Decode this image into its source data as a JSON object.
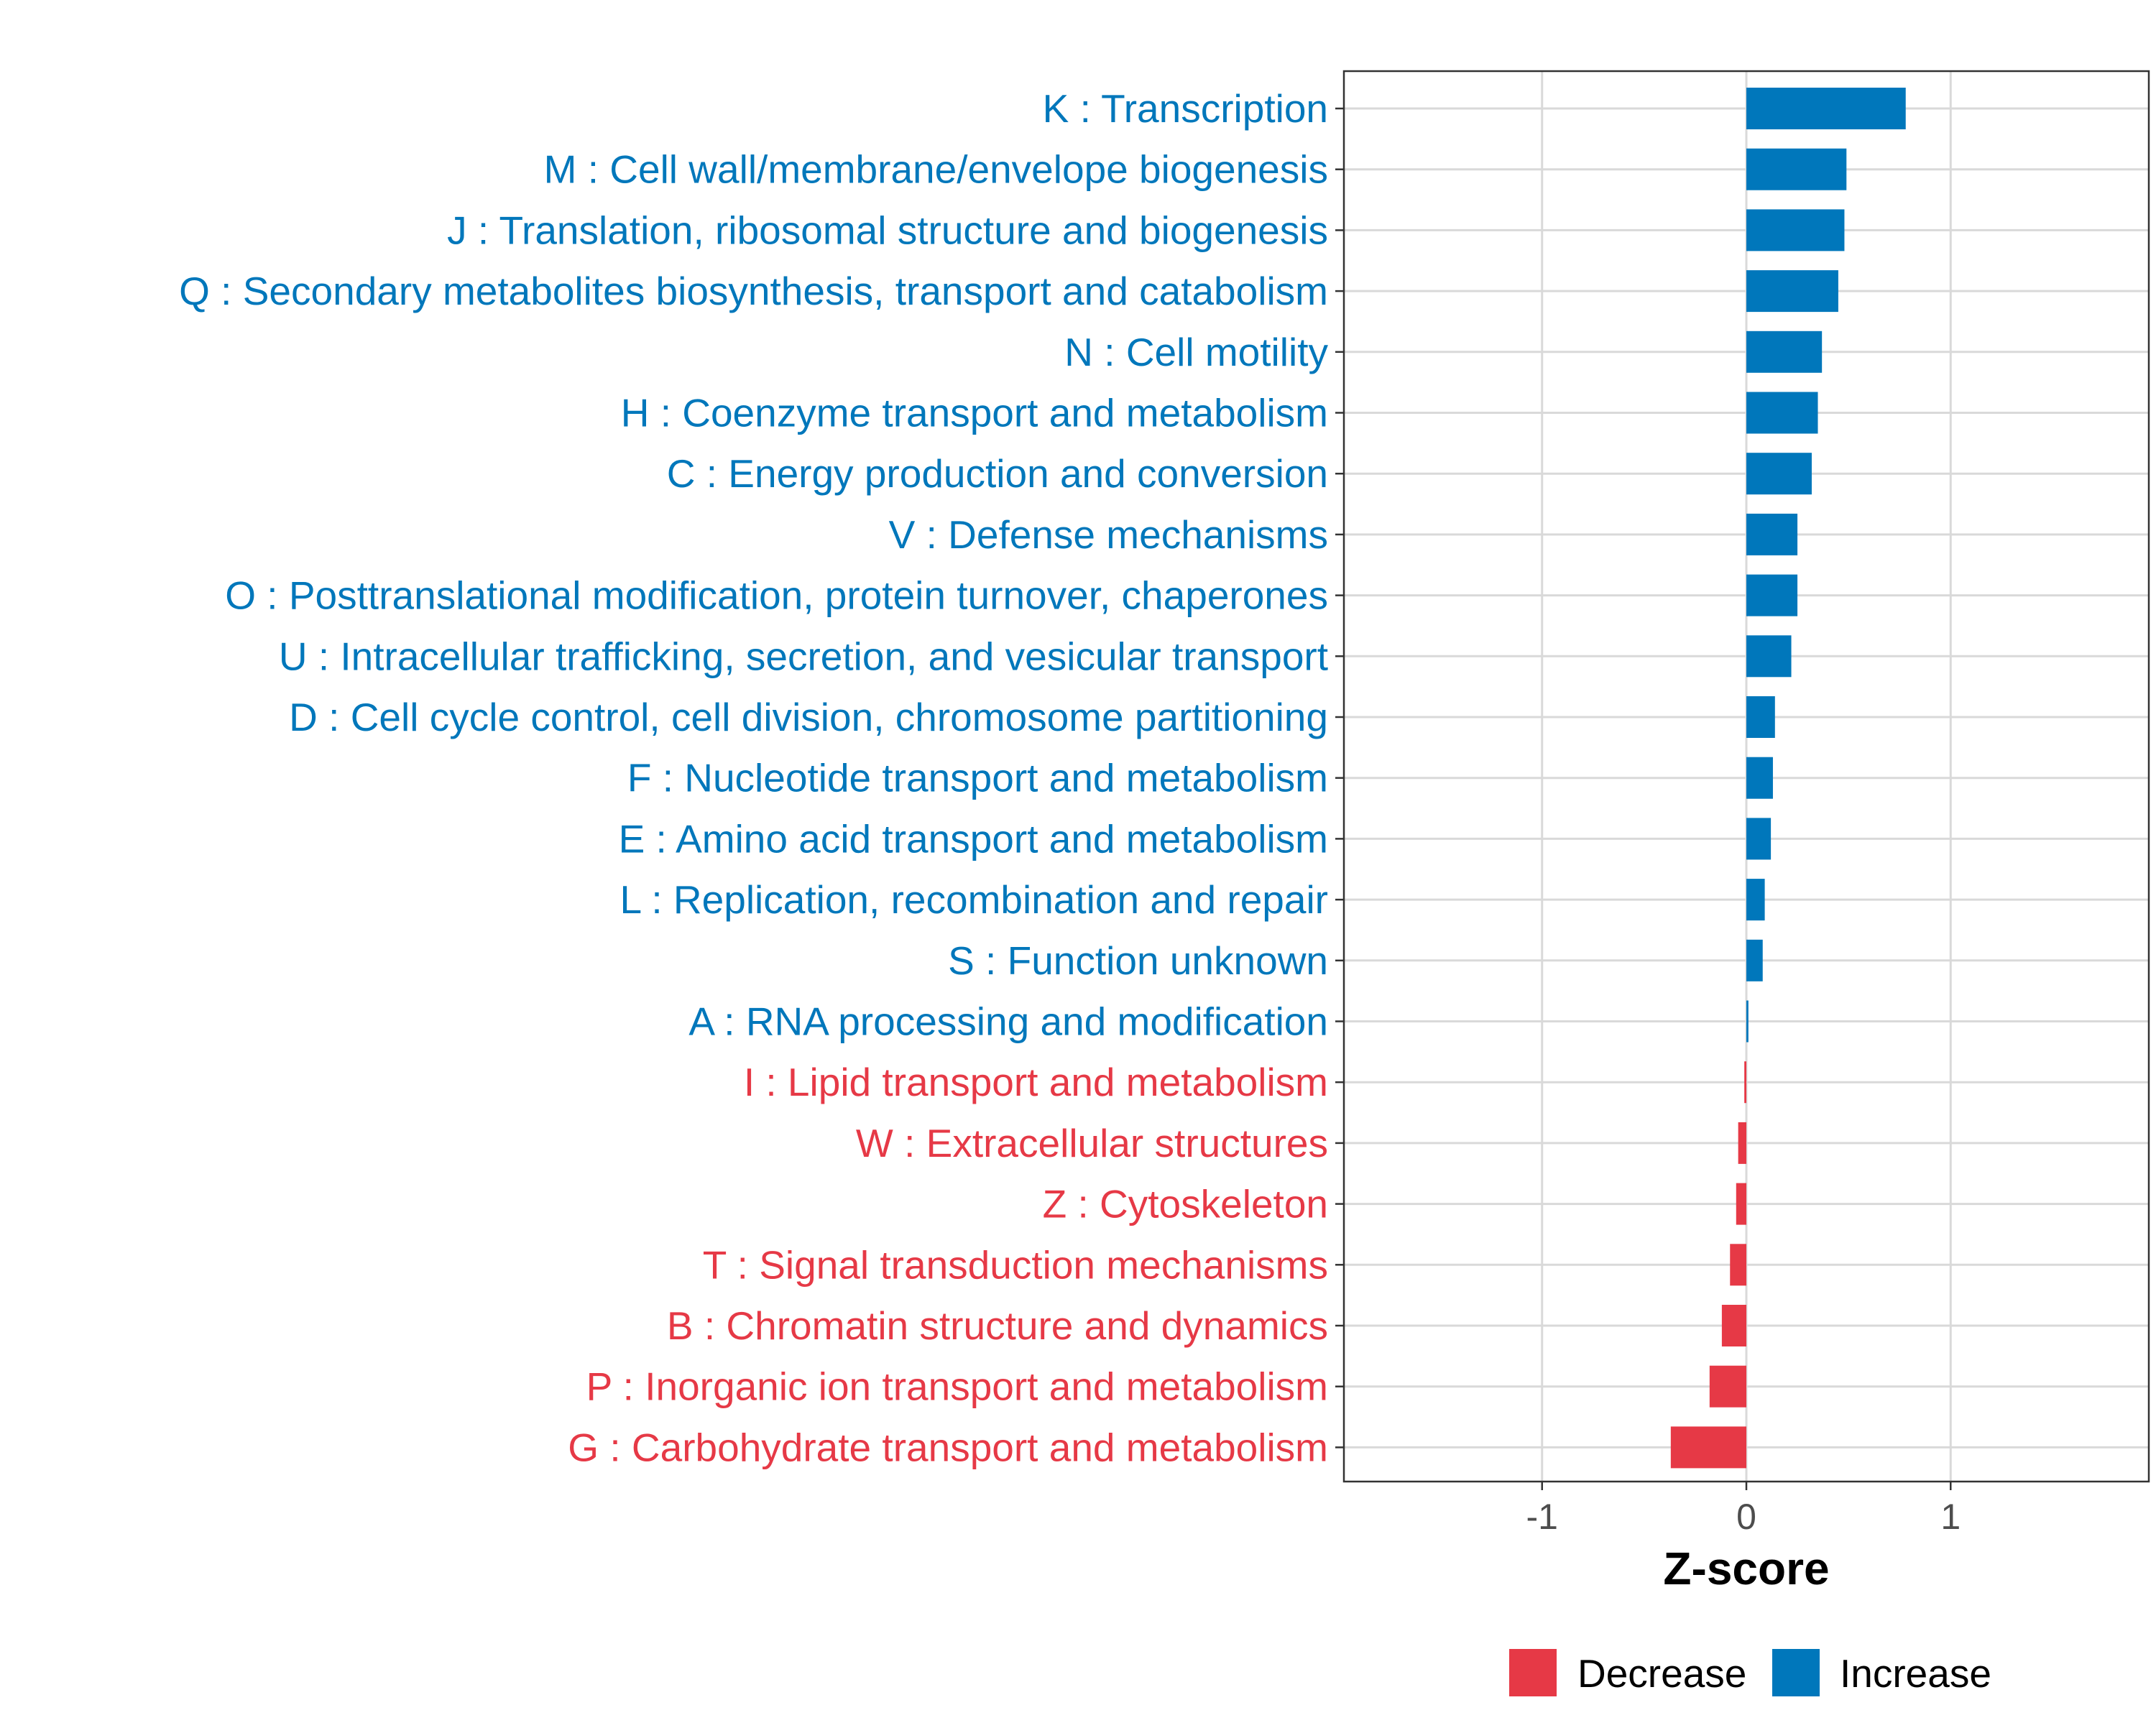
{
  "colors": {
    "increase": "#0077BB",
    "decrease": "#E63946",
    "grid": "#D9D9D9",
    "frame": "#333333",
    "tick_text": "#4D4D4D"
  },
  "chart_data": {
    "type": "bar",
    "orientation": "horizontal",
    "xlabel": "Z-score",
    "xlim": [
      -1.97,
      1.97
    ],
    "xticks": [
      -1,
      0,
      1
    ],
    "xtick_labels": [
      "-1",
      "0",
      "1"
    ],
    "grid": true,
    "legend_position": "bottom",
    "legend": [
      {
        "name": "Decrease",
        "color_key": "decrease"
      },
      {
        "name": "Increase",
        "color_key": "increase"
      }
    ],
    "categories": [
      "K : Transcription",
      "M : Cell wall/membrane/envelope biogenesis",
      "J : Translation, ribosomal structure and biogenesis",
      "Q : Secondary metabolites biosynthesis, transport and catabolism",
      "N : Cell motility",
      "H : Coenzyme transport and metabolism",
      "C : Energy production and conversion",
      "V : Defense mechanisms",
      "O : Posttranslational modification, protein turnover, chaperones",
      "U : Intracellular trafficking, secretion, and vesicular transport",
      "D : Cell cycle control, cell division, chromosome partitioning",
      "F : Nucleotide transport and metabolism",
      "E : Amino acid transport and metabolism",
      "L : Replication, recombination and repair",
      "S : Function unknown",
      "A : RNA processing and modification",
      "I : Lipid transport and metabolism",
      "W : Extracellular structures",
      "Z : Cytoskeleton",
      "T : Signal transduction mechanisms",
      "B : Chromatin structure and dynamics",
      "P : Inorganic ion transport and metabolism",
      "G : Carbohydrate transport and metabolism"
    ],
    "values": [
      0.78,
      0.49,
      0.48,
      0.45,
      0.37,
      0.35,
      0.32,
      0.25,
      0.25,
      0.22,
      0.14,
      0.13,
      0.12,
      0.09,
      0.08,
      0.01,
      -0.01,
      -0.04,
      -0.05,
      -0.08,
      -0.12,
      -0.18,
      -0.37
    ],
    "groups": [
      "Increase",
      "Increase",
      "Increase",
      "Increase",
      "Increase",
      "Increase",
      "Increase",
      "Increase",
      "Increase",
      "Increase",
      "Increase",
      "Increase",
      "Increase",
      "Increase",
      "Increase",
      "Increase",
      "Decrease",
      "Decrease",
      "Decrease",
      "Decrease",
      "Decrease",
      "Decrease",
      "Decrease"
    ]
  }
}
